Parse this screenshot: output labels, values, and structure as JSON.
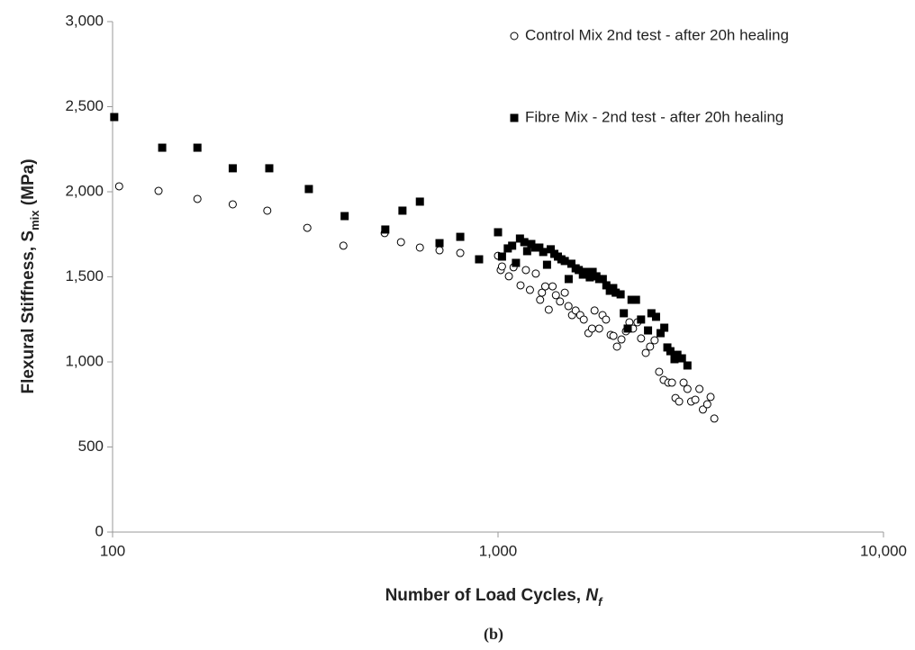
{
  "chart_data": {
    "type": "scatter",
    "x_scale": "log",
    "y_label_parts": [
      "Flexural Stiffness, S",
      "mix",
      " (MPa)"
    ],
    "x_label_parts": [
      "Number of Load Cycles, ",
      "N",
      "f"
    ],
    "caption": "(b)",
    "xlim": [
      100,
      10000
    ],
    "xticks": [
      100,
      {
        "value": 1000,
        "label": "1,000"
      },
      {
        "value": 10000,
        "label": "10,000"
      }
    ],
    "ylim": [
      0,
      3000
    ],
    "yticks": [
      0,
      500,
      {
        "value": 1000,
        "label": "1,000"
      },
      {
        "value": 1500,
        "label": "1,500"
      },
      {
        "value": 2000,
        "label": "2,000"
      },
      {
        "value": 2500,
        "label": "2,500"
      },
      {
        "value": 3000,
        "label": "3,000"
      }
    ],
    "grid": false,
    "legend": "upper right",
    "series": [
      {
        "name": "Control Mix 2nd test - after 20h healing",
        "marker": "circle",
        "color": "#000000",
        "x": [
          104,
          131.6,
          166,
          205,
          252,
          320,
          397,
          508,
          560,
          627,
          705,
          798,
          1000,
          1016,
          1024,
          1067,
          1097,
          1144,
          1181,
          1210,
          1253,
          1286,
          1300,
          1326,
          1354,
          1385,
          1413,
          1448,
          1490,
          1523,
          1556,
          1590,
          1634,
          1669,
          1716,
          1753,
          1780,
          1830,
          1867,
          1906,
          1960,
          1992,
          2035,
          2090,
          2147,
          2192,
          2240,
          2300,
          2350,
          2417,
          2480,
          2548,
          2618,
          2690,
          2766,
          2826,
          2887,
          2950,
          3030,
          3100,
          3170,
          3250,
          3330,
          3400,
          3490,
          3560,
          3640
        ],
        "values": [
          2032,
          2005,
          1958,
          1926,
          1889,
          1788,
          1683,
          1757,
          1704,
          1672,
          1656,
          1640,
          1624,
          1540,
          1561,
          1503,
          1556,
          1450,
          1540,
          1423,
          1519,
          1365,
          1407,
          1444,
          1307,
          1444,
          1392,
          1355,
          1407,
          1328,
          1275,
          1302,
          1275,
          1249,
          1169,
          1196,
          1302,
          1196,
          1275,
          1249,
          1159,
          1153,
          1090,
          1132,
          1180,
          1233,
          1196,
          1233,
          1138,
          1053,
          1090,
          1127,
          942,
          894,
          878,
          878,
          788,
          767,
          878,
          841,
          767,
          778,
          841,
          720,
          751,
          794,
          667
        ]
      },
      {
        "name": "Fibre Mix - 2nd test - after 20h healing",
        "marker": "square",
        "color": "#000000",
        "x": [
          101,
          134.5,
          166,
          205,
          255,
          323,
          400,
          510,
          565,
          627,
          705,
          798,
          893,
          1000,
          1024,
          1060,
          1088,
          1113,
          1140,
          1170,
          1190,
          1220,
          1250,
          1280,
          1310,
          1340,
          1370,
          1400,
          1430,
          1460,
          1490,
          1525,
          1550,
          1590,
          1620,
          1660,
          1690,
          1730,
          1760,
          1800,
          1830,
          1870,
          1910,
          1950,
          1990,
          2020,
          2080,
          2120,
          2170,
          2220,
          2280,
          2350,
          2450,
          2500,
          2570,
          2640,
          2700,
          2750,
          2800,
          2870,
          2920,
          3000,
          3100
        ],
        "values": [
          2439,
          2259,
          2259,
          2138,
          2138,
          2016,
          1857,
          1778,
          1889,
          1942,
          1698,
          1735,
          1603,
          1762,
          1619,
          1667,
          1683,
          1582,
          1725,
          1704,
          1651,
          1693,
          1672,
          1672,
          1646,
          1571,
          1662,
          1635,
          1619,
          1603,
          1593,
          1487,
          1577,
          1550,
          1540,
          1513,
          1529,
          1497,
          1529,
          1503,
          1487,
          1487,
          1450,
          1418,
          1434,
          1407,
          1397,
          1286,
          1196,
          1365,
          1365,
          1249,
          1185,
          1286,
          1265,
          1169,
          1201,
          1085,
          1063,
          1016,
          1042,
          1021,
          979
        ]
      }
    ]
  }
}
